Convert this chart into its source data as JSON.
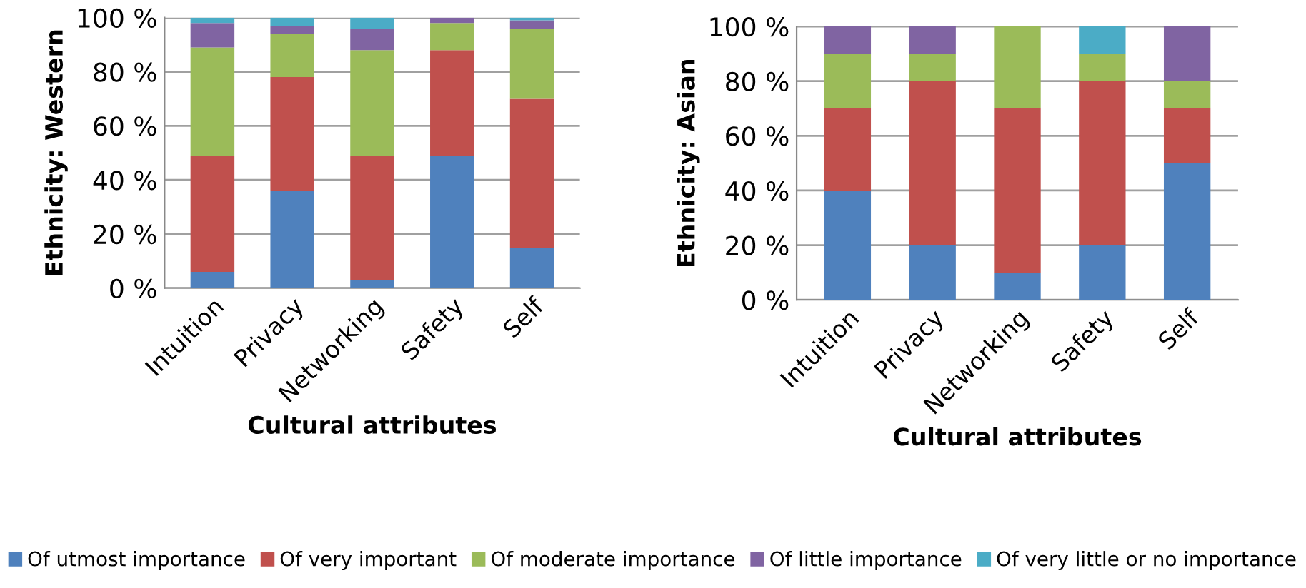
{
  "chart_data": [
    {
      "type": "bar",
      "stacked": true,
      "xlabel": "Cultural attributes",
      "ylabel": "Ethnicity: Western",
      "categories": [
        "Intuition",
        "Privacy",
        "Networking",
        "Safety",
        "Self"
      ],
      "series": [
        {
          "name": "Of utmost importance",
          "color": "#4f81bd",
          "values": [
            6,
            36,
            3,
            49,
            15
          ]
        },
        {
          "name": "Of very important",
          "color": "#c0504d",
          "values": [
            43,
            42,
            46,
            39,
            55
          ]
        },
        {
          "name": "Of moderate importance",
          "color": "#9bbb59",
          "values": [
            40,
            16,
            39,
            10,
            26
          ]
        },
        {
          "name": "Of little importance",
          "color": "#8064a2",
          "values": [
            9,
            3,
            8,
            2,
            3
          ]
        },
        {
          "name": "Of very little or no importance",
          "color": "#4bacc6",
          "values": [
            2,
            3,
            4,
            0,
            1
          ]
        }
      ],
      "ylim": [
        0,
        100
      ],
      "yticks": [
        {
          "value": 0,
          "label": "0 %"
        },
        {
          "value": 20,
          "label": "20 %"
        },
        {
          "value": 40,
          "label": "40 %"
        },
        {
          "value": 60,
          "label": "60 %"
        },
        {
          "value": 80,
          "label": "80 %"
        },
        {
          "value": 100,
          "label": "100 %"
        }
      ],
      "grid": "y",
      "legend": "bottom"
    },
    {
      "type": "bar",
      "stacked": true,
      "xlabel": "Cultural attributes",
      "ylabel": "Ethnicity: Asian",
      "categories": [
        "Intuition",
        "Privacy",
        "Networking",
        "Safety",
        "Self"
      ],
      "series": [
        {
          "color": "#4f81bd",
          "values": [
            40,
            20,
            10,
            20,
            50
          ]
        },
        {
          "color": "#c0504d",
          "values": [
            30,
            60,
            60,
            60,
            20
          ]
        },
        {
          "color": "#9bbb59",
          "values": [
            20,
            10,
            30,
            10,
            10
          ]
        },
        {
          "color": "#8064a2",
          "values": [
            10,
            10,
            0,
            0,
            20
          ]
        },
        {
          "color": "#4bacc6",
          "values": [
            0,
            0,
            0,
            10,
            0
          ]
        }
      ],
      "ylim": [
        0,
        100
      ],
      "yticks": [
        {
          "value": 0,
          "label": "0 %"
        },
        {
          "value": 20,
          "label": "20 %"
        },
        {
          "value": 40,
          "label": "40 %"
        },
        {
          "value": 60,
          "label": "60 %"
        },
        {
          "value": 80,
          "label": "80 %"
        },
        {
          "value": 100,
          "label": "100 %"
        }
      ],
      "grid": "y"
    }
  ]
}
